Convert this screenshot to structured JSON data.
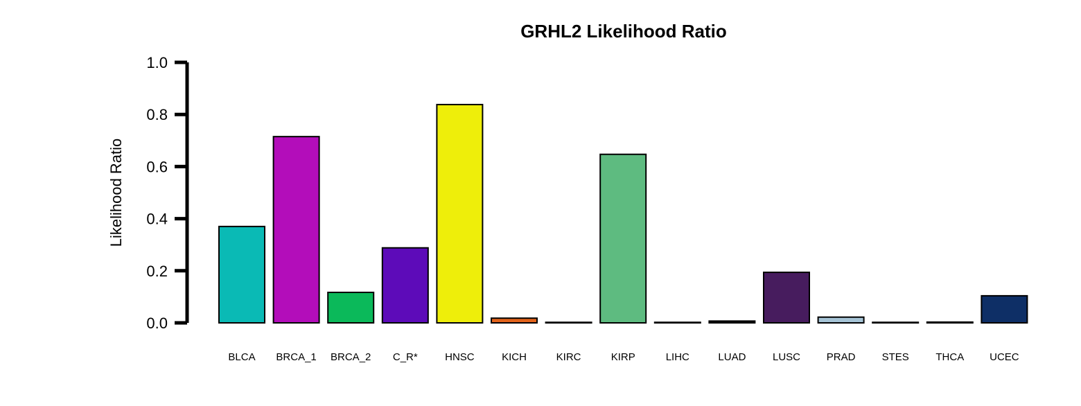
{
  "chart_data": {
    "type": "bar",
    "title": "GRHL2 Likelihood Ratio",
    "xlabel": "",
    "ylabel": "Likelihood Ratio",
    "ylim": [
      0,
      1
    ],
    "yticks": [
      "0.0",
      "0.2",
      "0.4",
      "0.6",
      "0.8",
      "1.0"
    ],
    "grid": false,
    "legend": "none",
    "categories": [
      "BLCA",
      "BRCA_1",
      "BRCA_2",
      "C_R*",
      "HNSC",
      "KICH",
      "KIRC",
      "KIRP",
      "LIHC",
      "LUAD",
      "LUSC",
      "PRAD",
      "STES",
      "THCA",
      "UCEC"
    ],
    "values": [
      0.37,
      0.715,
      0.117,
      0.288,
      0.838,
      0.018,
      0.001,
      0.647,
      0.001,
      0.007,
      0.194,
      0.022,
      0.001,
      0.003,
      0.104
    ],
    "colors": [
      "#0ABAB5",
      "#B30DBA",
      "#0BB95A",
      "#5D0BB9",
      "#EEEE0A",
      "#E2631B",
      "#000000",
      "#5EBB80",
      "#000000",
      "#000000",
      "#471C5E",
      "#A6C4D6",
      "#000000",
      "#000000",
      "#0E2F66"
    ]
  }
}
